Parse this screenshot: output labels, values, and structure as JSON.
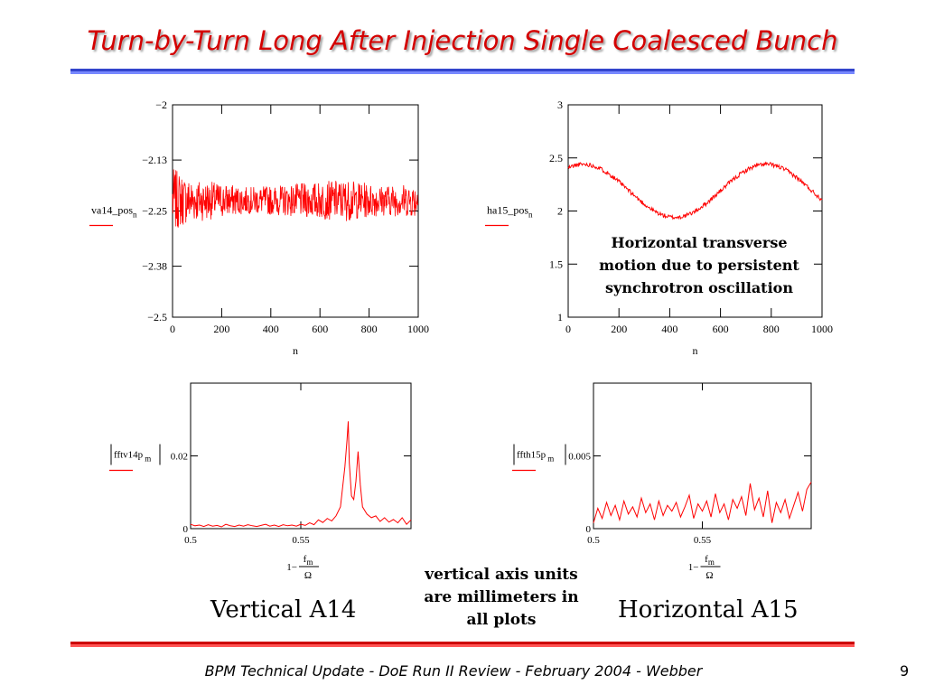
{
  "slide": {
    "title": "Turn-by-Turn Long After Injection Single Coalesced Bunch",
    "footer": "BPM Technical Update - DoE Run II Review - February 2004 - Webber",
    "page_number": "9",
    "label_vertical": "Vertical A14",
    "label_horizontal": "Horizontal A15",
    "annotation_horizontal": [
      "Horizontal transverse",
      "motion due to persistent",
      "synchrotron oscillation"
    ],
    "note_units": [
      "vertical axis units",
      "are millimeters in",
      "all plots"
    ]
  },
  "colors": {
    "title": "#d40000",
    "series": "#ff0000",
    "rule_top": "#3344cc",
    "rule_bottom": "#cc0000"
  },
  "chart_data": [
    {
      "id": "va14",
      "type": "line",
      "ylabel": "va14_pos",
      "ylabel_sub": "n",
      "xlabel": "n",
      "xlim": [
        0,
        1000
      ],
      "ylim": [
        -2.5,
        -2
      ],
      "xticks": [
        0,
        200,
        400,
        600,
        800,
        1000
      ],
      "yticks": [
        -2.5,
        -2.38,
        -2.25,
        -2.13,
        -2
      ],
      "ytick_labels": [
        "−2.5",
        "−2.38",
        "−2.25",
        "−2.13",
        "−2"
      ],
      "xtick_labels": [
        "0",
        "200",
        "400",
        "600",
        "800",
        "1000"
      ],
      "model": {
        "mean": -2.225,
        "noise_amplitude": 0.045,
        "envelope": [
          [
            0,
            1.7
          ],
          [
            60,
            1.2
          ],
          [
            300,
            0.7
          ],
          [
            450,
            0.8
          ],
          [
            700,
            1.1
          ],
          [
            850,
            0.8
          ],
          [
            1000,
            0.9
          ]
        ]
      }
    },
    {
      "id": "ha15",
      "type": "line",
      "ylabel": "ha15_pos",
      "ylabel_sub": "n",
      "xlabel": "n",
      "xlim": [
        0,
        1000
      ],
      "ylim": [
        1,
        3
      ],
      "xticks": [
        0,
        200,
        400,
        600,
        800,
        1000
      ],
      "yticks": [
        1,
        1.5,
        2,
        2.5,
        3
      ],
      "ytick_labels": [
        "1",
        "1.5",
        "2",
        "2.5",
        "3"
      ],
      "xtick_labels": [
        "0",
        "200",
        "400",
        "600",
        "800",
        "1000"
      ],
      "model": {
        "mean": 2.19,
        "amplitude": 0.25,
        "period": 720,
        "peak_at": 60,
        "noise": 0.02
      }
    },
    {
      "id": "fftv14p",
      "type": "line",
      "ylabel": "fftv14p",
      "ylabel_sub": "m",
      "xlabel_num": "f",
      "xlabel_sub": "m",
      "xlabel_prefix": "1−",
      "xlabel_den": "Ω",
      "xlim": [
        0.5,
        0.6
      ],
      "ylim": [
        0,
        0.04
      ],
      "ytick_values": [
        0,
        0.02
      ],
      "ytick_labels": [
        "0",
        "0.02"
      ],
      "xtick_values": [
        0.5,
        0.55
      ],
      "xtick_labels": [
        "0.5",
        "0.55"
      ],
      "points": [
        [
          0.5,
          0.0012
        ],
        [
          0.502,
          0.0008
        ],
        [
          0.504,
          0.001
        ],
        [
          0.506,
          0.0006
        ],
        [
          0.508,
          0.0011
        ],
        [
          0.51,
          0.0007
        ],
        [
          0.512,
          0.0009
        ],
        [
          0.514,
          0.0005
        ],
        [
          0.516,
          0.0012
        ],
        [
          0.518,
          0.0008
        ],
        [
          0.52,
          0.0006
        ],
        [
          0.522,
          0.001
        ],
        [
          0.524,
          0.0007
        ],
        [
          0.526,
          0.0011
        ],
        [
          0.528,
          0.0008
        ],
        [
          0.53,
          0.0006
        ],
        [
          0.532,
          0.0009
        ],
        [
          0.534,
          0.0012
        ],
        [
          0.536,
          0.0007
        ],
        [
          0.538,
          0.001
        ],
        [
          0.54,
          0.0006
        ],
        [
          0.542,
          0.0011
        ],
        [
          0.544,
          0.0008
        ],
        [
          0.546,
          0.001
        ],
        [
          0.548,
          0.0007
        ],
        [
          0.55,
          0.0012
        ],
        [
          0.552,
          0.0009
        ],
        [
          0.554,
          0.0016
        ],
        [
          0.556,
          0.0011
        ],
        [
          0.558,
          0.0024
        ],
        [
          0.56,
          0.0017
        ],
        [
          0.562,
          0.0028
        ],
        [
          0.564,
          0.0021
        ],
        [
          0.566,
          0.0035
        ],
        [
          0.568,
          0.006
        ],
        [
          0.57,
          0.017
        ],
        [
          0.571,
          0.0245
        ],
        [
          0.5715,
          0.0295
        ],
        [
          0.572,
          0.018
        ],
        [
          0.573,
          0.009
        ],
        [
          0.574,
          0.008
        ],
        [
          0.575,
          0.013
        ],
        [
          0.576,
          0.0212
        ],
        [
          0.577,
          0.012
        ],
        [
          0.578,
          0.006
        ],
        [
          0.58,
          0.004
        ],
        [
          0.582,
          0.003
        ],
        [
          0.584,
          0.0035
        ],
        [
          0.586,
          0.002
        ],
        [
          0.588,
          0.003
        ],
        [
          0.59,
          0.0018
        ],
        [
          0.592,
          0.0025
        ],
        [
          0.594,
          0.0016
        ],
        [
          0.596,
          0.003
        ],
        [
          0.598,
          0.0012
        ],
        [
          0.6,
          0.0024
        ]
      ]
    },
    {
      "id": "ffth15p",
      "type": "line",
      "ylabel": "ffth15p",
      "ylabel_sub": "m",
      "xlabel_num": "f",
      "xlabel_sub": "m",
      "xlabel_prefix": "1−",
      "xlabel_den": "Ω",
      "xlim": [
        0.5,
        0.6
      ],
      "ylim": [
        0,
        0.01
      ],
      "ytick_values": [
        0,
        0.005
      ],
      "ytick_labels": [
        "0",
        "0.005"
      ],
      "xtick_values": [
        0.5,
        0.55
      ],
      "xtick_labels": [
        "0.5",
        "0.55"
      ],
      "points": [
        [
          0.5,
          0.0004
        ],
        [
          0.502,
          0.0014
        ],
        [
          0.504,
          0.0007
        ],
        [
          0.506,
          0.0018
        ],
        [
          0.508,
          0.0009
        ],
        [
          0.51,
          0.0016
        ],
        [
          0.512,
          0.0006
        ],
        [
          0.514,
          0.0019
        ],
        [
          0.516,
          0.001
        ],
        [
          0.518,
          0.0015
        ],
        [
          0.52,
          0.0008
        ],
        [
          0.522,
          0.0021
        ],
        [
          0.524,
          0.0011
        ],
        [
          0.526,
          0.0017
        ],
        [
          0.528,
          0.0006
        ],
        [
          0.53,
          0.0019
        ],
        [
          0.532,
          0.0009
        ],
        [
          0.534,
          0.0016
        ],
        [
          0.536,
          0.0012
        ],
        [
          0.538,
          0.0018
        ],
        [
          0.54,
          0.0008
        ],
        [
          0.542,
          0.0015
        ],
        [
          0.544,
          0.0023
        ],
        [
          0.546,
          0.0007
        ],
        [
          0.548,
          0.0017
        ],
        [
          0.55,
          0.0012
        ],
        [
          0.552,
          0.0019
        ],
        [
          0.554,
          0.0008
        ],
        [
          0.556,
          0.0024
        ],
        [
          0.558,
          0.0011
        ],
        [
          0.56,
          0.0017
        ],
        [
          0.562,
          0.0006
        ],
        [
          0.564,
          0.002
        ],
        [
          0.566,
          0.0014
        ],
        [
          0.568,
          0.0022
        ],
        [
          0.57,
          0.0009
        ],
        [
          0.572,
          0.0031
        ],
        [
          0.574,
          0.0013
        ],
        [
          0.576,
          0.0021
        ],
        [
          0.578,
          0.0008
        ],
        [
          0.58,
          0.0026
        ],
        [
          0.582,
          0.0004
        ],
        [
          0.584,
          0.0018
        ],
        [
          0.586,
          0.0011
        ],
        [
          0.588,
          0.002
        ],
        [
          0.59,
          0.0007
        ],
        [
          0.592,
          0.0016
        ],
        [
          0.594,
          0.0025
        ],
        [
          0.596,
          0.0012
        ],
        [
          0.598,
          0.0027
        ],
        [
          0.6,
          0.0032
        ]
      ]
    }
  ]
}
